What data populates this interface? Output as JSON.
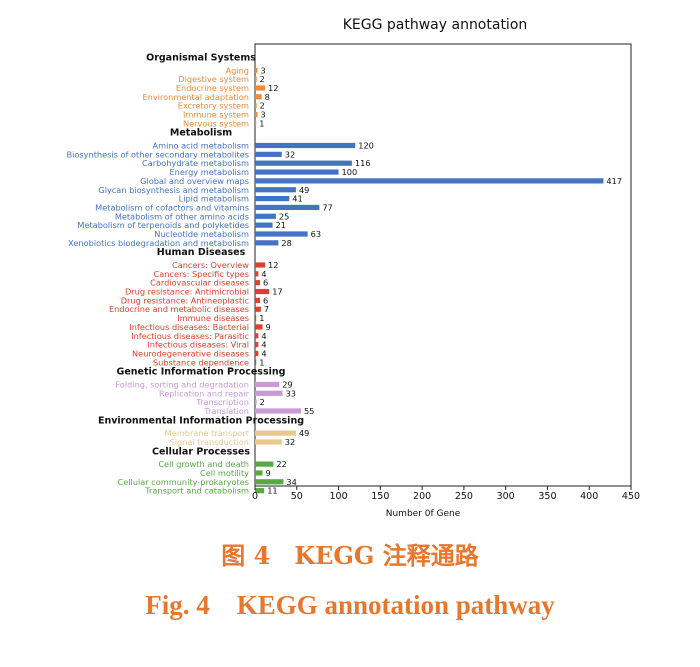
{
  "chart_data": {
    "type": "bar",
    "orientation": "horizontal",
    "title": "KEGG pathway annotation",
    "xlabel": "Number 0f Gene",
    "ylabel": "",
    "xlim": [
      0,
      450
    ],
    "xticks": [
      0,
      50,
      100,
      150,
      200,
      250,
      300,
      350,
      400,
      450
    ],
    "grid": false,
    "groups": [
      {
        "name": "Organismal Systems",
        "color": "#ee8a3a",
        "items": [
          {
            "label": "Aging",
            "value": 3
          },
          {
            "label": "Digestive system",
            "value": 2
          },
          {
            "label": "Endocrine system",
            "value": 12
          },
          {
            "label": "Environmental adaptation",
            "value": 8
          },
          {
            "label": "Excretory system",
            "value": 2
          },
          {
            "label": "Immune system",
            "value": 3
          },
          {
            "label": "Nervous system",
            "value": 1
          }
        ]
      },
      {
        "name": "Metabolism",
        "color": "#4472c4",
        "items": [
          {
            "label": "Amino acid metabolism",
            "value": 120
          },
          {
            "label": "Biosynthesis of other secondary metabolites",
            "value": 32
          },
          {
            "label": "Carbohydrate metabolism",
            "value": 116
          },
          {
            "label": "Energy metabolism",
            "value": 100
          },
          {
            "label": "Global and overview maps",
            "value": 417
          },
          {
            "label": "Glycan biosynthesis and metabolism",
            "value": 49
          },
          {
            "label": "Lipid metabolism",
            "value": 41
          },
          {
            "label": "Metabolism of cofactors and vitamins",
            "value": 77
          },
          {
            "label": "Metabolism of other amino acids",
            "value": 25
          },
          {
            "label": "Metabolism of terpenoids and polyketides",
            "value": 21
          },
          {
            "label": "Nucleotide metabolism",
            "value": 63
          },
          {
            "label": "Xenobiotics biodegradation and metabolism",
            "value": 28
          }
        ]
      },
      {
        "name": "Human Diseases",
        "color": "#e0402a",
        "items": [
          {
            "label": "Cancers: Overview",
            "value": 12
          },
          {
            "label": "Cancers: Specific types",
            "value": 4
          },
          {
            "label": "Cardiovascular diseases",
            "value": 6
          },
          {
            "label": "Drug resistance: Antimicrobial",
            "value": 17
          },
          {
            "label": "Drug resistance: Antineoplastic",
            "value": 6
          },
          {
            "label": "Endocrine and metabolic diseases",
            "value": 7
          },
          {
            "label": "Immune diseases",
            "value": 1
          },
          {
            "label": "Infectious diseases: Bacterial",
            "value": 9
          },
          {
            "label": "Infectious diseases: Parasitic",
            "value": 4
          },
          {
            "label": "Infectious diseases: Viral",
            "value": 4
          },
          {
            "label": "Neurodegenerative diseases",
            "value": 4
          },
          {
            "label": "Substance dependence",
            "value": 1
          }
        ]
      },
      {
        "name": "Genetic Information Processing",
        "color": "#c99ad6",
        "items": [
          {
            "label": "Folding, sorting and degradation",
            "value": 29
          },
          {
            "label": "Replication and repair",
            "value": 33
          },
          {
            "label": "Transcription",
            "value": 2
          },
          {
            "label": "Translation",
            "value": 55
          }
        ]
      },
      {
        "name": "Environmental Information Processing",
        "color": "#e9c88a",
        "items": [
          {
            "label": "Membrane transport",
            "value": 49
          },
          {
            "label": "Signal transduction",
            "value": 32
          }
        ]
      },
      {
        "name": "Cellular Processes",
        "color": "#58a845",
        "items": [
          {
            "label": "Cell growth and death",
            "value": 22
          },
          {
            "label": "Cell motility",
            "value": 9
          },
          {
            "label": "Cellular community-prokaryotes",
            "value": 34
          },
          {
            "label": "Transport and catabolism",
            "value": 11
          }
        ]
      }
    ]
  },
  "caption": {
    "cn": "图 4　KEGG 注释通路",
    "en": "Fig. 4　KEGG annotation pathway"
  }
}
